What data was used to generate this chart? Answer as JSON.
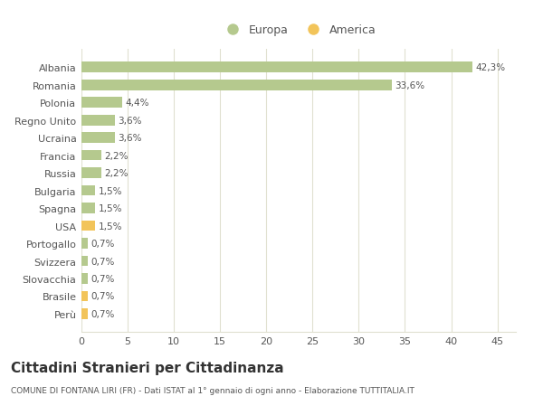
{
  "categories": [
    "Albania",
    "Romania",
    "Polonia",
    "Regno Unito",
    "Ucraina",
    "Francia",
    "Russia",
    "Bulgaria",
    "Spagna",
    "USA",
    "Portogallo",
    "Svizzera",
    "Slovacchia",
    "Brasile",
    "Perù"
  ],
  "values": [
    42.3,
    33.6,
    4.4,
    3.6,
    3.6,
    2.2,
    2.2,
    1.5,
    1.5,
    1.5,
    0.7,
    0.7,
    0.7,
    0.7,
    0.7
  ],
  "labels": [
    "42,3%",
    "33,6%",
    "4,4%",
    "3,6%",
    "3,6%",
    "2,2%",
    "2,2%",
    "1,5%",
    "1,5%",
    "1,5%",
    "0,7%",
    "0,7%",
    "0,7%",
    "0,7%",
    "0,7%"
  ],
  "colors": [
    "#b5c98e",
    "#b5c98e",
    "#b5c98e",
    "#b5c98e",
    "#b5c98e",
    "#b5c98e",
    "#b5c98e",
    "#b5c98e",
    "#b5c98e",
    "#f2c45a",
    "#b5c98e",
    "#b5c98e",
    "#b5c98e",
    "#f2c45a",
    "#f2c45a"
  ],
  "europa_color": "#b5c98e",
  "america_color": "#f2c45a",
  "xlim": [
    0,
    47
  ],
  "xticks": [
    0,
    5,
    10,
    15,
    20,
    25,
    30,
    35,
    40,
    45
  ],
  "title": "Cittadini Stranieri per Cittadinanza",
  "subtitle": "COMUNE DI FONTANA LIRI (FR) - Dati ISTAT al 1° gennaio di ogni anno - Elaborazione TUTTITALIA.IT",
  "bg_color": "#ffffff",
  "plot_bg_color": "#ffffff",
  "grid_color": "#e0e0d0",
  "text_color": "#555555"
}
